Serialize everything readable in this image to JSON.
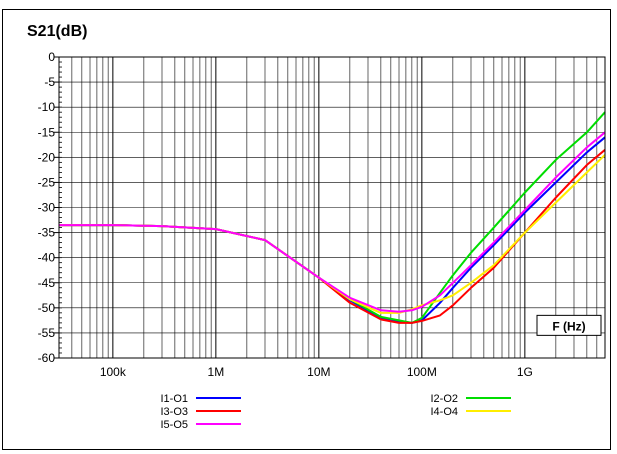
{
  "chart_data": {
    "type": "line",
    "title": "S21(dB)",
    "xlabel": "F (Hz)",
    "ylabel": "",
    "x_scale": "log",
    "xlim": [
      30000,
      6000000000
    ],
    "ylim": [
      -60,
      0
    ],
    "grid": true,
    "legend_position": "bottom",
    "y_ticks": [
      0,
      -5,
      -10,
      -15,
      -20,
      -25,
      -30,
      -35,
      -40,
      -45,
      -50,
      -55,
      -60
    ],
    "y_tick_labels": [
      "0",
      "-5",
      "-10",
      "-15",
      "-20",
      "-25",
      "-30",
      "-35",
      "-40",
      "-45",
      "-50",
      "-55",
      "-60"
    ],
    "x_ticks": [
      100000,
      1000000,
      10000000,
      100000000,
      1000000000
    ],
    "x_tick_labels": [
      "100k",
      "1M",
      "10M",
      "100M",
      "1G"
    ],
    "series": [
      {
        "name": "I1-O1",
        "color": "#0000ff",
        "x": [
          30000,
          100000,
          300000,
          1000000,
          3000000,
          10000000,
          20000000,
          40000000,
          60000000,
          80000000,
          100000000,
          150000000,
          200000000,
          300000000,
          500000000,
          1000000000,
          2000000000,
          4000000000,
          6000000000
        ],
        "y": [
          -33.5,
          -33.5,
          -33.7,
          -34.3,
          -36.5,
          -44,
          -48.5,
          -52,
          -52.8,
          -53,
          -52.5,
          -49,
          -46,
          -42,
          -37.5,
          -31,
          -25,
          -19,
          -16
        ]
      },
      {
        "name": "I2-O2",
        "color": "#00dd00",
        "x": [
          30000,
          100000,
          300000,
          1000000,
          3000000,
          10000000,
          20000000,
          40000000,
          60000000,
          80000000,
          100000000,
          150000000,
          200000000,
          300000000,
          500000000,
          1000000000,
          2000000000,
          4000000000,
          6000000000
        ],
        "y": [
          -33.5,
          -33.5,
          -33.7,
          -34.3,
          -36.5,
          -44,
          -48.3,
          -51.8,
          -52.5,
          -53,
          -52,
          -47,
          -43.5,
          -39,
          -34,
          -27,
          -20.5,
          -15,
          -11
        ]
      },
      {
        "name": "I3-O3",
        "color": "#ff0000",
        "x": [
          30000,
          100000,
          300000,
          1000000,
          3000000,
          10000000,
          20000000,
          40000000,
          60000000,
          80000000,
          100000000,
          150000000,
          200000000,
          300000000,
          500000000,
          1000000000,
          2000000000,
          4000000000,
          6000000000
        ],
        "y": [
          -33.5,
          -33.5,
          -33.7,
          -34.3,
          -36.5,
          -44,
          -49,
          -52.3,
          -53,
          -53,
          -52.6,
          -51.5,
          -49.5,
          -46,
          -42,
          -35,
          -28,
          -21.5,
          -18.5
        ]
      },
      {
        "name": "I4-O4",
        "color": "#ffee00",
        "x": [
          30000,
          100000,
          300000,
          1000000,
          3000000,
          10000000,
          20000000,
          40000000,
          60000000,
          80000000,
          100000000,
          150000000,
          200000000,
          300000000,
          500000000,
          1000000000,
          2000000000,
          4000000000,
          6000000000
        ],
        "y": [
          -33.5,
          -33.5,
          -33.7,
          -34.3,
          -36.5,
          -44,
          -48.3,
          -51,
          -51,
          -50.3,
          -49.5,
          -48.5,
          -47.5,
          -45,
          -41.5,
          -35,
          -29,
          -23,
          -19.5
        ]
      },
      {
        "name": "I5-O5",
        "color": "#ff00ff",
        "x": [
          30000,
          100000,
          300000,
          1000000,
          3000000,
          10000000,
          20000000,
          40000000,
          60000000,
          80000000,
          100000000,
          150000000,
          200000000,
          300000000,
          500000000,
          1000000000,
          2000000000,
          4000000000,
          6000000000
        ],
        "y": [
          -33.5,
          -33.5,
          -33.7,
          -34.3,
          -36.5,
          -44,
          -48,
          -50.5,
          -50.8,
          -50.5,
          -49.8,
          -47.5,
          -45,
          -41.5,
          -37,
          -30.5,
          -24,
          -18,
          -15
        ]
      }
    ]
  }
}
